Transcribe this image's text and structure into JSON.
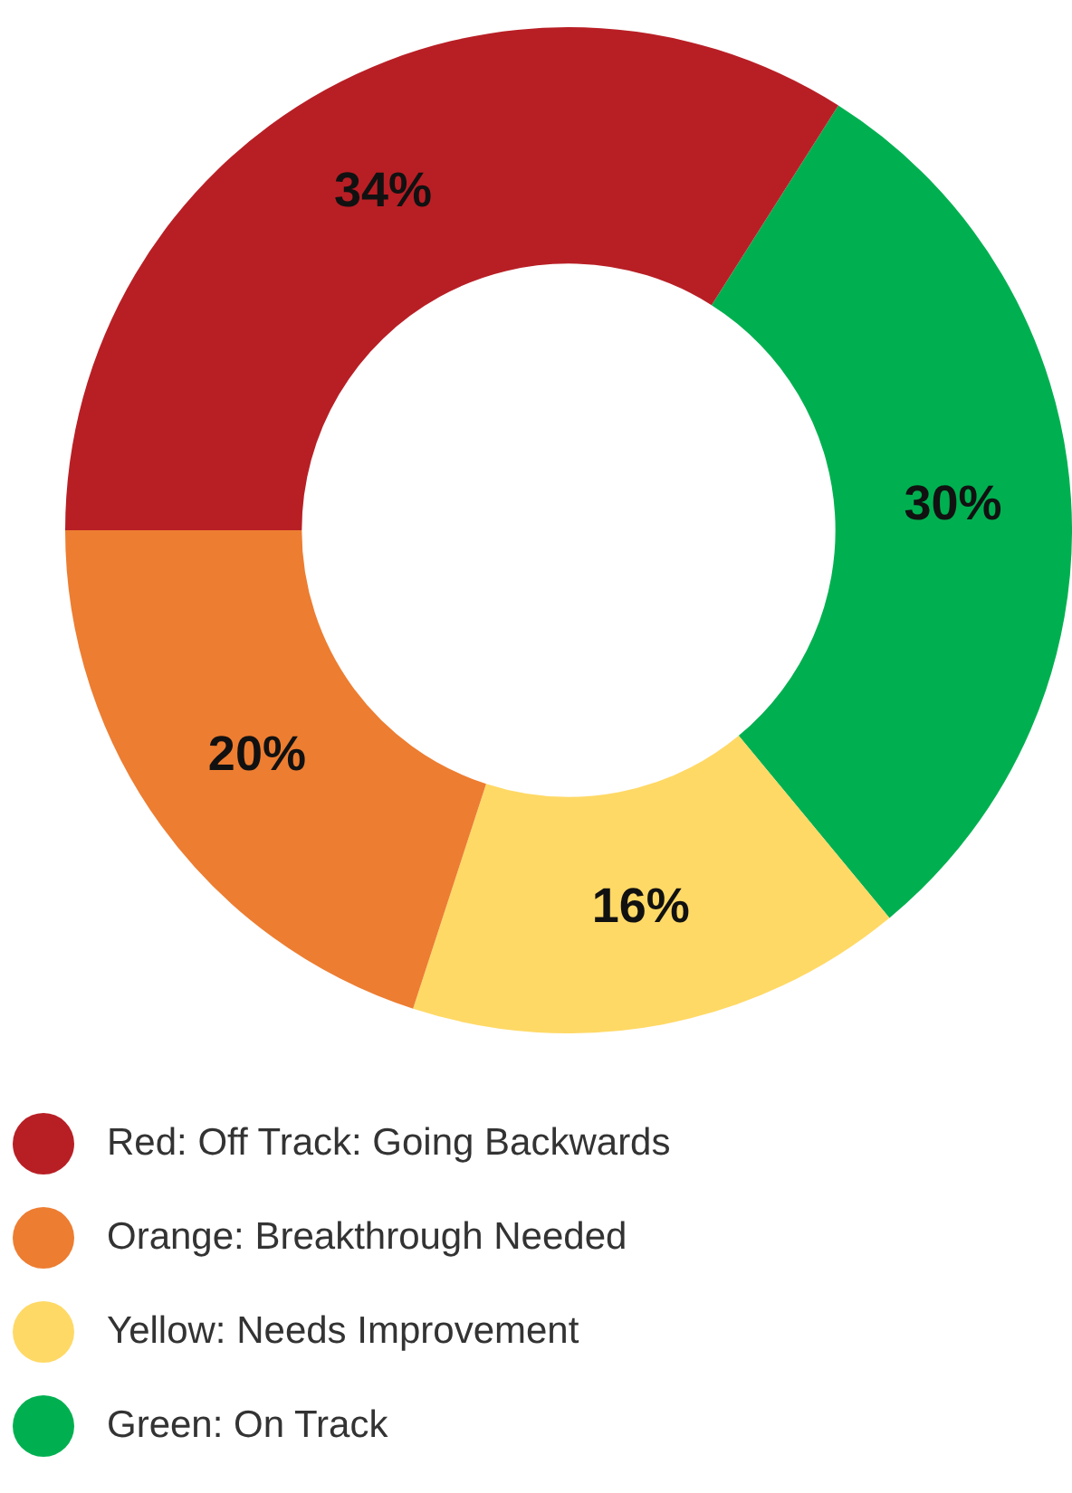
{
  "chart_data": {
    "type": "donut",
    "categories": [
      "Red: Off Track: Going Backwards",
      "Orange: Breakthrough Needed",
      "Yellow: Needs Improvement",
      "Green: On Track"
    ],
    "values": [
      34,
      20,
      16,
      30
    ],
    "value_labels": [
      "34%",
      "20%",
      "16%",
      "30%"
    ],
    "colors": [
      "#b81f25",
      "#ed7d31",
      "#ffd966",
      "#00b050"
    ],
    "legend": "bottom"
  }
}
